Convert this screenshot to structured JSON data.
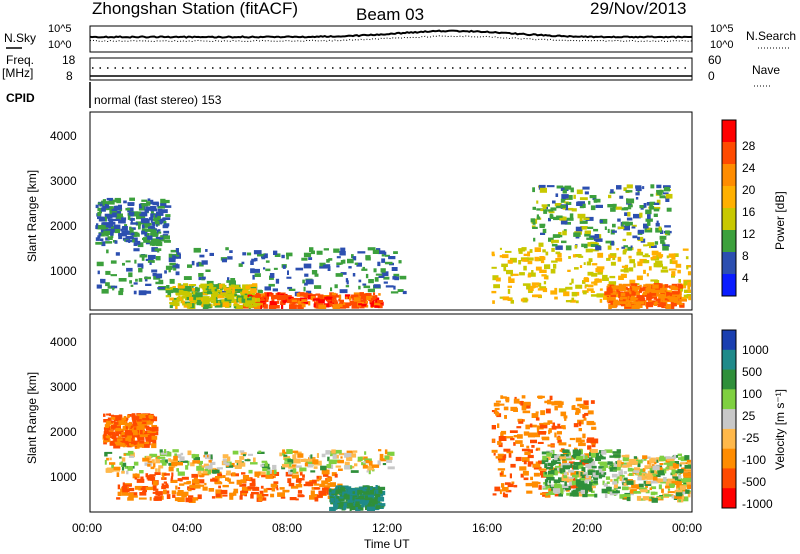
{
  "header": {
    "station": "Zhongshan Station (fitACF)",
    "beam": "Beam 03",
    "date": "29/Nov/2013"
  },
  "params": {
    "nsky_label": "N.Sky",
    "nsearch_label": "N.Search",
    "left_top_ticks": [
      "10^5",
      "10^0"
    ],
    "right_top_ticks": [
      "10^5",
      "10^0"
    ],
    "freq_label_1": "Freq.",
    "freq_label_2": "[MHz]",
    "freq_ticks": [
      "18",
      "8"
    ],
    "nave_label": "Nave",
    "nave_ticks": [
      "60",
      "0"
    ],
    "cpid_label": "CPID",
    "mode_text": "normal (fast stereo) 153"
  },
  "axes": {
    "x_label": "Time UT",
    "x_ticks": [
      "00:00",
      "04:00",
      "08:00",
      "12:00",
      "16:00",
      "20:00",
      "00:00"
    ],
    "y_label_1": "Slant Range [km]",
    "y_label_2": "Slant Range [km]",
    "y_ticks": [
      "4000",
      "3000",
      "2000",
      "1000"
    ]
  },
  "colorbars": {
    "power": {
      "label": "Power [dB]",
      "ticks": [
        "28",
        "24",
        "20",
        "16",
        "12",
        "8",
        "4"
      ],
      "colors": [
        "#ff0000",
        "#ff4a00",
        "#ff8c00",
        "#ffb000",
        "#c8c800",
        "#3ca03c",
        "#2c4fb0",
        "#0a1cff"
      ]
    },
    "velocity": {
      "label": "Velocity [m s⁻¹]",
      "ticks": [
        "1000",
        "500",
        "100",
        "25",
        "-25",
        "-100",
        "-500",
        "-1000"
      ],
      "colors": [
        "#1a3fb0",
        "#1f8a8a",
        "#2f8f3a",
        "#7fd040",
        "#c8c8c8",
        "#ffb84a",
        "#ff8c00",
        "#ff4a00",
        "#ff0000"
      ]
    }
  },
  "chart_data": {
    "type": "heatmap",
    "title": "Zhongshan Station (fitACF)",
    "xlabel": "Time UT",
    "ylabel": "Slant Range [km]",
    "xlim": [
      0,
      24
    ],
    "ylim": [
      200,
      4600
    ],
    "panels": [
      {
        "name": "Power [dB]",
        "zlim": [
          0,
          32
        ],
        "regions": [
          {
            "t": [
              0.2,
              12.5
            ],
            "range": [
              600,
              1600
            ],
            "value": 8
          },
          {
            "t": [
              0.2,
              3.0
            ],
            "range": [
              1700,
              2700
            ],
            "value": 8
          },
          {
            "t": [
              6.0,
              11.5
            ],
            "range": [
              300,
              600
            ],
            "value": 26
          },
          {
            "t": [
              3.0,
              6.5
            ],
            "range": [
              300,
              800
            ],
            "value": 14
          },
          {
            "t": [
              16.0,
              24.0
            ],
            "range": [
              400,
              1600
            ],
            "value": 16
          },
          {
            "t": [
              17.5,
              23.0
            ],
            "range": [
              1600,
              3000
            ],
            "value": 10
          },
          {
            "t": [
              20.5,
              23.5
            ],
            "range": [
              300,
              800
            ],
            "value": 24
          }
        ]
      },
      {
        "name": "Velocity [m s-1]",
        "zlim": [
          -1000,
          1000
        ],
        "regions": [
          {
            "t": [
              0.5,
              2.5
            ],
            "range": [
              1700,
              2400
            ],
            "value": -500
          },
          {
            "t": [
              1.0,
              10.0
            ],
            "range": [
              500,
              1100
            ],
            "value": -500
          },
          {
            "t": [
              0.5,
              12.0
            ],
            "range": [
              1100,
              1600
            ],
            "value": 0
          },
          {
            "t": [
              9.5,
              11.5
            ],
            "range": [
              300,
              800
            ],
            "value": 500
          },
          {
            "t": [
              16.0,
              20.0
            ],
            "range": [
              600,
              2800
            ],
            "value": -500
          },
          {
            "t": [
              18.0,
              21.0
            ],
            "range": [
              600,
              1600
            ],
            "value": 100
          },
          {
            "t": [
              21.0,
              24.0
            ],
            "range": [
              500,
              1500
            ],
            "value": 0
          }
        ]
      }
    ]
  }
}
